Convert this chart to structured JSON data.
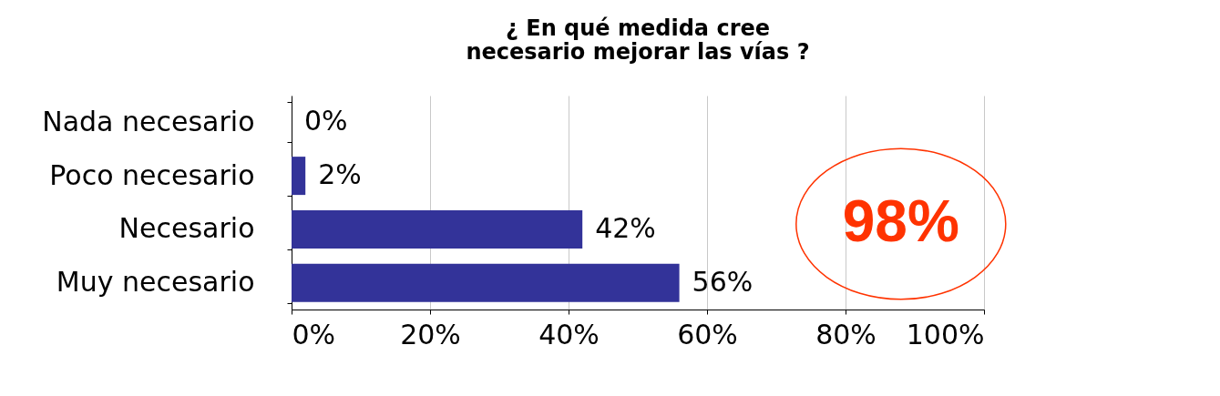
{
  "chart_data": {
    "type": "bar",
    "orientation": "horizontal",
    "title": "¿ En qué medida cree necesario mejorar las vías ?",
    "categories": [
      "Nada necesario",
      "Poco necesario",
      "Necesario",
      "Muy necesario"
    ],
    "values": [
      0,
      2,
      42,
      56
    ],
    "color": "#333399",
    "value_labels": [
      "0%",
      "2%",
      "42%",
      "56%"
    ],
    "xlim": [
      0,
      100
    ],
    "xticks": [
      {
        "value": 0,
        "label": "0%"
      },
      {
        "value": 20,
        "label": "20%"
      },
      {
        "value": 40,
        "label": "40%"
      },
      {
        "value": 60,
        "label": "60%"
      },
      {
        "value": 80,
        "label": "80%"
      },
      {
        "value": 100,
        "label": "100%"
      }
    ],
    "grid": "x",
    "annotations": [
      "98%"
    ]
  }
}
